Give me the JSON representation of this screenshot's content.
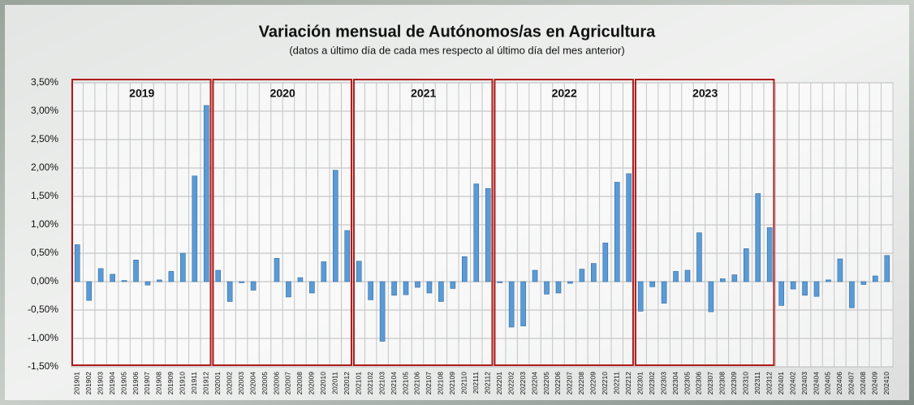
{
  "chart_data": {
    "type": "bar",
    "title": "Variación mensual de Autónomos/as en Agricultura",
    "subtitle": "(datos a último día de cada mes respecto al último día del mes anterior)",
    "categories": [
      "201901",
      "201902",
      "201903",
      "201904",
      "201905",
      "201906",
      "201907",
      "201908",
      "201909",
      "201910",
      "201911",
      "201912",
      "202001",
      "202002",
      "202003",
      "202004",
      "202005",
      "202006",
      "202007",
      "202008",
      "202009",
      "202010",
      "202011",
      "202012",
      "202101",
      "202102",
      "202103",
      "202104",
      "202105",
      "202106",
      "202107",
      "202108",
      "202109",
      "202110",
      "202111",
      "202112",
      "202201",
      "202202",
      "202203",
      "202204",
      "202205",
      "202206",
      "202207",
      "202208",
      "202209",
      "202210",
      "202211",
      "202212",
      "202301",
      "202302",
      "202303",
      "202304",
      "202305",
      "202306",
      "202307",
      "202308",
      "202309",
      "202310",
      "202311",
      "202312",
      "202401",
      "202402",
      "202403",
      "202404",
      "202405",
      "202406",
      "202407",
      "202408",
      "202409",
      "202410"
    ],
    "values": [
      0.65,
      -0.33,
      0.23,
      0.13,
      0.02,
      0.38,
      -0.06,
      0.03,
      0.18,
      0.5,
      1.86,
      3.1,
      0.2,
      -0.35,
      -0.02,
      -0.15,
      0.0,
      0.41,
      -0.27,
      0.07,
      -0.2,
      0.35,
      1.96,
      0.9,
      0.36,
      -0.32,
      -1.05,
      -0.24,
      -0.23,
      -0.1,
      -0.2,
      -0.35,
      -0.12,
      0.44,
      1.72,
      1.64,
      -0.02,
      -0.8,
      -0.78,
      0.2,
      -0.22,
      -0.2,
      -0.03,
      0.22,
      0.32,
      0.68,
      1.75,
      1.9,
      -0.52,
      -0.09,
      -0.38,
      0.18,
      0.2,
      0.86,
      -0.53,
      0.05,
      0.12,
      0.58,
      1.55,
      0.95,
      -0.42,
      -0.13,
      -0.24,
      -0.26,
      0.03,
      0.4,
      -0.46,
      -0.05,
      0.1,
      0.46
    ],
    "color": "#5b9bd5",
    "year_boxes": [
      "2019",
      "2020",
      "2021",
      "2022",
      "2023"
    ],
    "ylim": [
      -1.5,
      3.5
    ],
    "yticks": [
      {
        "value": -1.5,
        "label": "-1,50%"
      },
      {
        "value": -1,
        "label": "-1,00%"
      },
      {
        "value": -0.5,
        "label": "-0,50%"
      },
      {
        "value": 0,
        "label": "0,00%"
      },
      {
        "value": 0.5,
        "label": "0,50%"
      },
      {
        "value": 1,
        "label": "1,00%"
      },
      {
        "value": 1.5,
        "label": "1,50%"
      },
      {
        "value": 2,
        "label": "2,00%"
      },
      {
        "value": 2.5,
        "label": "2,50%"
      },
      {
        "value": 3,
        "label": "3,00%"
      },
      {
        "value": 3.5,
        "label": "3,50%"
      }
    ],
    "grid": true
  }
}
